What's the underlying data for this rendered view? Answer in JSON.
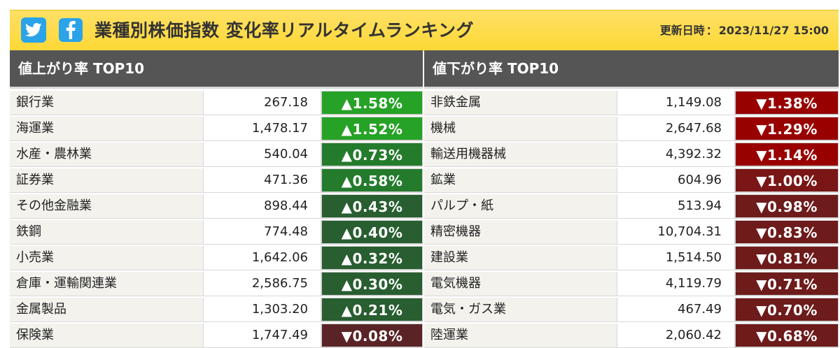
{
  "header": {
    "title": "業種別株価指数 変化率リアルタイムランキング",
    "updated_label": "更新日時",
    "updated_sep": "：",
    "updated_value": "2023/11/27 15:00",
    "icons": [
      "twitter-icon",
      "facebook-icon"
    ],
    "colors": {
      "header_bg": "#fdd835",
      "social_bg": "#2aa3e8"
    }
  },
  "gainers": {
    "heading": "値上がり率 TOP10",
    "rows": [
      {
        "name": "銀行業",
        "value": "267.18",
        "change": "▲1.58%",
        "color": "#26a226"
      },
      {
        "name": "海運業",
        "value": "1,478.17",
        "change": "▲1.52%",
        "color": "#26a226"
      },
      {
        "name": "水産・農林業",
        "value": "540.04",
        "change": "▲0.73%",
        "color": "#247b2c"
      },
      {
        "name": "証券業",
        "value": "471.36",
        "change": "▲0.58%",
        "color": "#247b2c"
      },
      {
        "name": "その他金融業",
        "value": "898.44",
        "change": "▲0.43%",
        "color": "#285e30"
      },
      {
        "name": "鉄鋼",
        "value": "774.48",
        "change": "▲0.40%",
        "color": "#285e30"
      },
      {
        "name": "小売業",
        "value": "1,642.06",
        "change": "▲0.32%",
        "color": "#285e30"
      },
      {
        "name": "倉庫・運輸関連業",
        "value": "2,586.75",
        "change": "▲0.30%",
        "color": "#285e30"
      },
      {
        "name": "金属製品",
        "value": "1,303.20",
        "change": "▲0.21%",
        "color": "#285e30"
      },
      {
        "name": "保険業",
        "value": "1,747.49",
        "change": "▼0.08%",
        "color": "#5a2426"
      }
    ]
  },
  "losers": {
    "heading": "値下がり率 TOP10",
    "rows": [
      {
        "name": "非鉄金属",
        "value": "1,149.08",
        "change": "▼1.38%",
        "color": "#990000"
      },
      {
        "name": "機械",
        "value": "2,647.68",
        "change": "▼1.29%",
        "color": "#990000"
      },
      {
        "name": "輸送用機器械",
        "value": "4,392.32",
        "change": "▼1.14%",
        "color": "#990000"
      },
      {
        "name": "鉱業",
        "value": "604.96",
        "change": "▼1.00%",
        "color": "#7a1616"
      },
      {
        "name": "パルプ・紙",
        "value": "513.94",
        "change": "▼0.98%",
        "color": "#6e1b1b"
      },
      {
        "name": "精密機器",
        "value": "10,704.31",
        "change": "▼0.83%",
        "color": "#6e1b1b"
      },
      {
        "name": "建設業",
        "value": "1,514.50",
        "change": "▼0.81%",
        "color": "#6e1b1b"
      },
      {
        "name": "電気機器",
        "value": "4,119.79",
        "change": "▼0.71%",
        "color": "#6e1b1b"
      },
      {
        "name": "電気・ガス業",
        "value": "467.49",
        "change": "▼0.70%",
        "color": "#6e1b1b"
      },
      {
        "name": "陸運業",
        "value": "2,060.42",
        "change": "▼0.68%",
        "color": "#6e1b1b"
      }
    ]
  }
}
